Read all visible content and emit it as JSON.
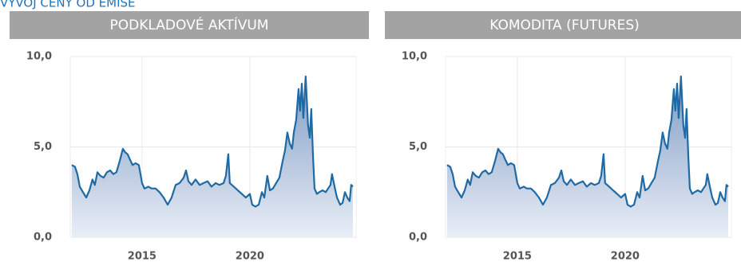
{
  "page_title": "VÝVOJ CENY OD EMISE",
  "chart_data": [
    {
      "type": "area",
      "title": "PODKLADOVÉ AKTÍVUM",
      "color": "#1f6aa5",
      "grid": true,
      "xlim": [
        2011.67,
        2024.93
      ],
      "ylim": [
        0,
        10
      ],
      "xticks": [
        2015,
        2020
      ],
      "yticks": [
        {
          "value": 0,
          "label": "0,0"
        },
        {
          "value": 5,
          "label": "5,0"
        },
        {
          "value": 10,
          "label": "10,0"
        }
      ],
      "x": [
        2011.74,
        2011.89,
        2012.0,
        2012.11,
        2012.26,
        2012.41,
        2012.56,
        2012.7,
        2012.81,
        2012.93,
        2013.07,
        2013.22,
        2013.37,
        2013.52,
        2013.67,
        2013.81,
        2013.96,
        2014.11,
        2014.22,
        2014.33,
        2014.44,
        2014.56,
        2014.7,
        2014.85,
        2015.0,
        2015.11,
        2015.3,
        2015.44,
        2015.63,
        2015.81,
        2016.0,
        2016.19,
        2016.37,
        2016.56,
        2016.74,
        2016.93,
        2017.04,
        2017.15,
        2017.3,
        2017.48,
        2017.67,
        2017.85,
        2018.04,
        2018.22,
        2018.41,
        2018.59,
        2018.78,
        2018.89,
        2019.0,
        2019.07,
        2019.26,
        2019.44,
        2019.63,
        2019.81,
        2020.0,
        2020.11,
        2020.26,
        2020.41,
        2020.56,
        2020.67,
        2020.81,
        2020.93,
        2021.07,
        2021.22,
        2021.37,
        2021.52,
        2021.63,
        2021.74,
        2021.85,
        2021.96,
        2022.04,
        2022.15,
        2022.26,
        2022.33,
        2022.41,
        2022.48,
        2022.59,
        2022.7,
        2022.78,
        2022.85,
        2022.93,
        2023.0,
        2023.11,
        2023.22,
        2023.37,
        2023.52,
        2023.63,
        2023.74,
        2023.81,
        2023.93,
        2024.04,
        2024.19,
        2024.3,
        2024.41,
        2024.52,
        2024.63,
        2024.7,
        2024.78
      ],
      "values": [
        4.0,
        3.9,
        3.5,
        2.8,
        2.5,
        2.2,
        2.6,
        3.2,
        2.9,
        3.6,
        3.4,
        3.3,
        3.6,
        3.7,
        3.5,
        3.6,
        4.2,
        4.9,
        4.7,
        4.6,
        4.3,
        4.0,
        4.1,
        4.0,
        3.0,
        2.7,
        2.8,
        2.7,
        2.7,
        2.5,
        2.2,
        1.8,
        2.2,
        2.9,
        3.0,
        3.3,
        3.7,
        3.1,
        2.9,
        3.2,
        2.9,
        3.0,
        3.1,
        2.8,
        3.0,
        2.9,
        3.0,
        3.4,
        4.6,
        3.0,
        2.8,
        2.6,
        2.4,
        2.2,
        2.4,
        1.8,
        1.7,
        1.8,
        2.5,
        2.2,
        3.4,
        2.6,
        2.7,
        3.0,
        3.3,
        4.2,
        4.8,
        5.8,
        5.2,
        4.9,
        5.8,
        6.5,
        8.2,
        7.0,
        8.5,
        6.6,
        8.9,
        6.2,
        5.5,
        7.1,
        4.5,
        2.7,
        2.4,
        2.5,
        2.6,
        2.5,
        2.7,
        2.9,
        3.5,
        2.8,
        2.2,
        1.8,
        1.9,
        2.5,
        2.2,
        2.0,
        2.9,
        2.8
      ]
    },
    {
      "type": "area",
      "title": "KOMODITA (FUTURES)",
      "color": "#1f6aa5",
      "grid": true,
      "xlim": [
        2011.67,
        2024.93
      ],
      "ylim": [
        0,
        10
      ],
      "xticks": [
        2015,
        2020
      ],
      "yticks": [
        {
          "value": 0,
          "label": "0,0"
        },
        {
          "value": 5,
          "label": "5,0"
        },
        {
          "value": 10,
          "label": "10,0"
        }
      ],
      "x": [
        2011.74,
        2011.89,
        2012.0,
        2012.11,
        2012.26,
        2012.41,
        2012.56,
        2012.7,
        2012.81,
        2012.93,
        2013.07,
        2013.22,
        2013.37,
        2013.52,
        2013.67,
        2013.81,
        2013.96,
        2014.11,
        2014.22,
        2014.33,
        2014.44,
        2014.56,
        2014.7,
        2014.85,
        2015.0,
        2015.11,
        2015.3,
        2015.44,
        2015.63,
        2015.81,
        2016.0,
        2016.19,
        2016.37,
        2016.56,
        2016.74,
        2016.93,
        2017.04,
        2017.15,
        2017.3,
        2017.48,
        2017.67,
        2017.85,
        2018.04,
        2018.22,
        2018.41,
        2018.59,
        2018.78,
        2018.89,
        2019.0,
        2019.07,
        2019.26,
        2019.44,
        2019.63,
        2019.81,
        2020.0,
        2020.11,
        2020.26,
        2020.41,
        2020.56,
        2020.67,
        2020.81,
        2020.93,
        2021.07,
        2021.22,
        2021.37,
        2021.52,
        2021.63,
        2021.74,
        2021.85,
        2021.96,
        2022.04,
        2022.15,
        2022.26,
        2022.33,
        2022.41,
        2022.48,
        2022.59,
        2022.7,
        2022.78,
        2022.85,
        2022.93,
        2023.0,
        2023.11,
        2023.22,
        2023.37,
        2023.52,
        2023.63,
        2023.74,
        2023.81,
        2023.93,
        2024.04,
        2024.19,
        2024.3,
        2024.41,
        2024.52,
        2024.63,
        2024.7,
        2024.78
      ],
      "values": [
        4.0,
        3.9,
        3.5,
        2.8,
        2.5,
        2.2,
        2.6,
        3.2,
        2.9,
        3.6,
        3.4,
        3.3,
        3.6,
        3.7,
        3.5,
        3.6,
        4.2,
        4.9,
        4.7,
        4.6,
        4.3,
        4.0,
        4.1,
        4.0,
        3.0,
        2.7,
        2.8,
        2.7,
        2.7,
        2.5,
        2.2,
        1.8,
        2.2,
        2.9,
        3.0,
        3.3,
        3.7,
        3.1,
        2.9,
        3.2,
        2.9,
        3.0,
        3.1,
        2.8,
        3.0,
        2.9,
        3.0,
        3.4,
        4.6,
        3.0,
        2.8,
        2.6,
        2.4,
        2.2,
        2.4,
        1.8,
        1.7,
        1.8,
        2.5,
        2.2,
        3.4,
        2.6,
        2.7,
        3.0,
        3.3,
        4.2,
        4.8,
        5.8,
        5.2,
        4.9,
        5.8,
        6.5,
        8.2,
        7.0,
        8.5,
        6.6,
        8.9,
        6.2,
        5.5,
        7.1,
        4.5,
        2.7,
        2.4,
        2.5,
        2.6,
        2.5,
        2.7,
        2.9,
        3.5,
        2.8,
        2.2,
        1.8,
        1.9,
        2.5,
        2.2,
        2.0,
        2.9,
        2.8
      ]
    }
  ]
}
